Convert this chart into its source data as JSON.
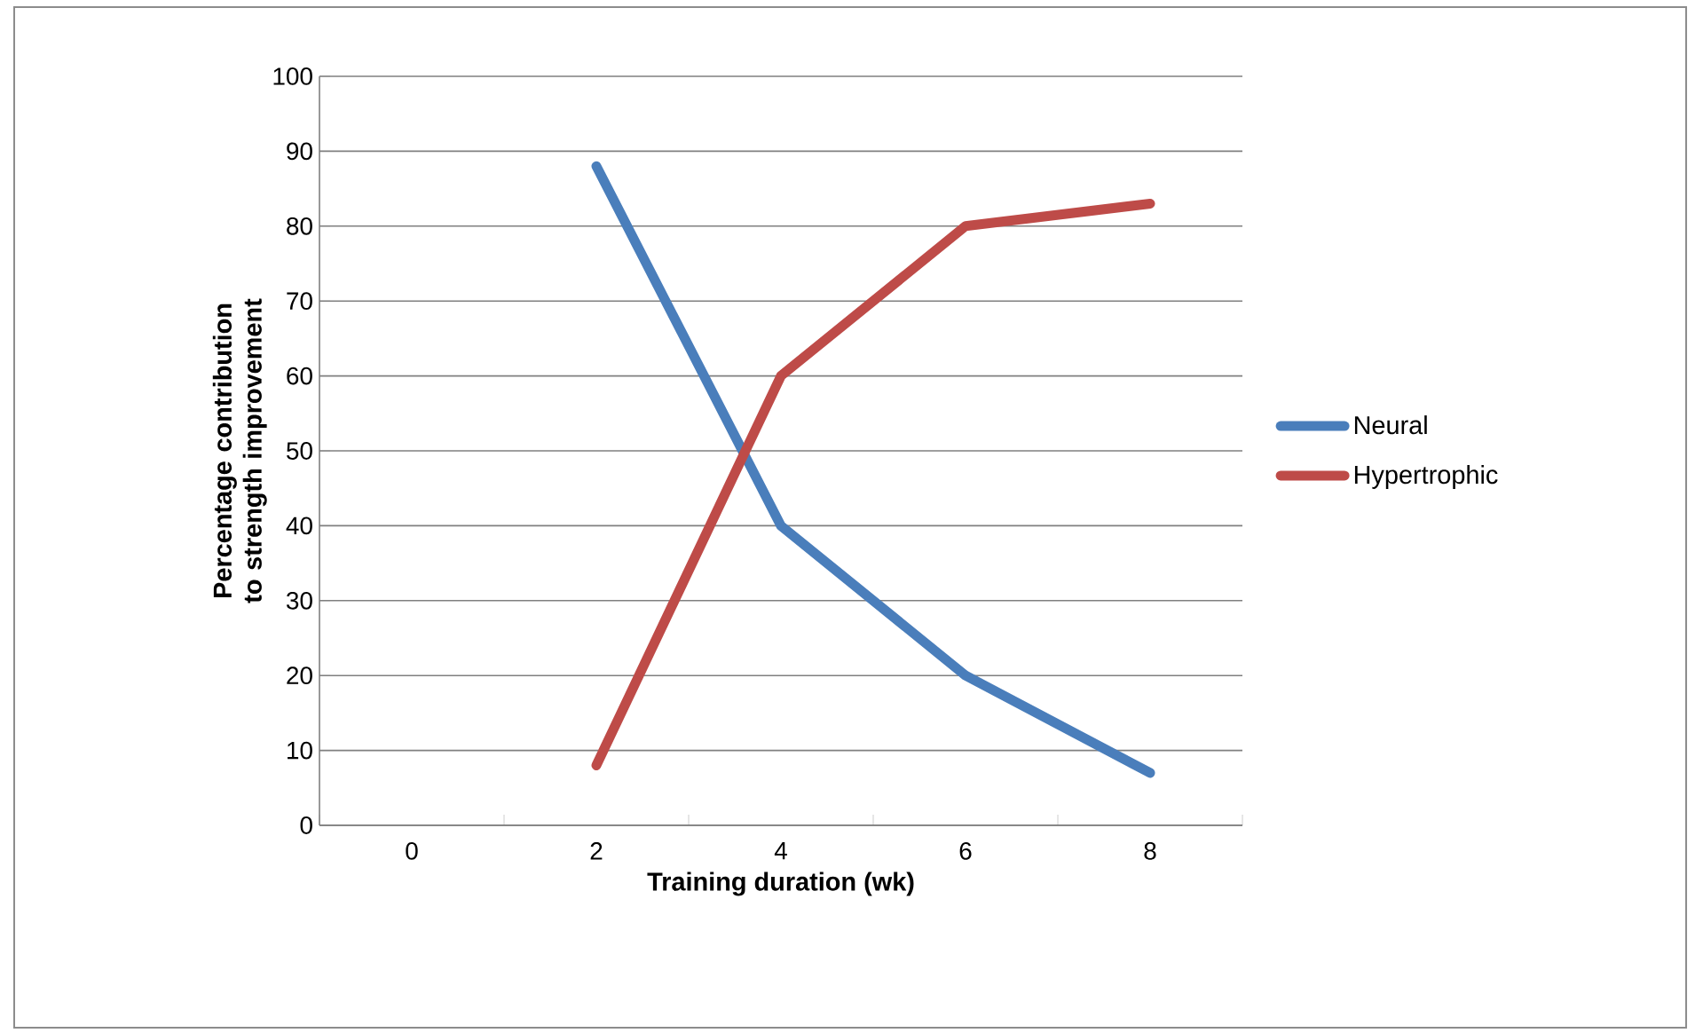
{
  "chart_data": {
    "type": "line",
    "xlabel": "Training duration (wk)",
    "ylabel": "Percentage contribution to strength improvement",
    "categories": [
      "0",
      "2",
      "4",
      "6",
      "8"
    ],
    "series": [
      {
        "name": "Neural",
        "color": "#4a7ebb",
        "values": [
          null,
          88,
          40,
          20,
          7
        ]
      },
      {
        "name": "Hypertrophic",
        "color": "#be4b48",
        "values": [
          null,
          8,
          60,
          80,
          83
        ]
      }
    ],
    "ylim": [
      0,
      100
    ],
    "yticks": [
      0,
      10,
      20,
      30,
      40,
      50,
      60,
      70,
      80,
      90,
      100
    ],
    "grid": "y",
    "legend": "right",
    "marker": "none",
    "line_style": "solid"
  }
}
